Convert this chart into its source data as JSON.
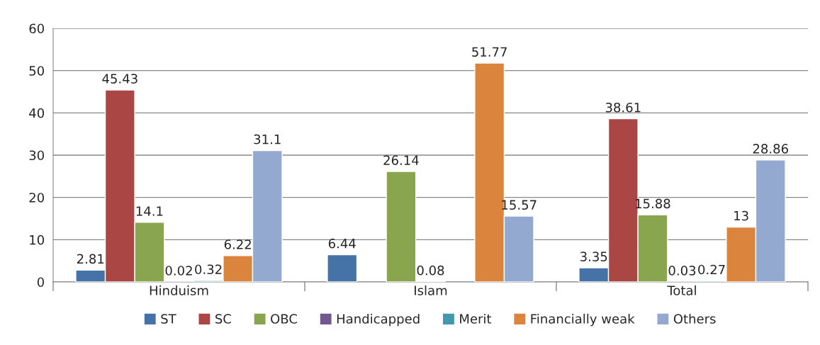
{
  "chart_data": {
    "type": "bar",
    "categories": [
      "Hinduism",
      "Islam",
      "Total"
    ],
    "series": [
      {
        "name": "ST",
        "color": "#4572a7",
        "values": [
          2.81,
          6.44,
          3.35
        ]
      },
      {
        "name": "SC",
        "color": "#aa4643",
        "values": [
          45.43,
          null,
          38.61
        ]
      },
      {
        "name": "OBC",
        "color": "#89a54e",
        "values": [
          14.1,
          26.14,
          15.88
        ]
      },
      {
        "name": "Handicapped",
        "color": "#71588f",
        "values": [
          0.02,
          0.08,
          0.03
        ]
      },
      {
        "name": "Merit",
        "color": "#4198af",
        "values": [
          0.32,
          null,
          0.27
        ]
      },
      {
        "name": "Financially weak",
        "color": "#db843d",
        "values": [
          6.22,
          51.77,
          13
        ]
      },
      {
        "name": "Others",
        "color": "#93a9cf",
        "values": [
          31.1,
          15.57,
          28.86
        ]
      }
    ],
    "ylim": [
      0,
      60
    ],
    "yticks": [
      0,
      10,
      20,
      30,
      40,
      50,
      60
    ],
    "grid": "y",
    "legend": "bottom",
    "data_labels": true
  }
}
